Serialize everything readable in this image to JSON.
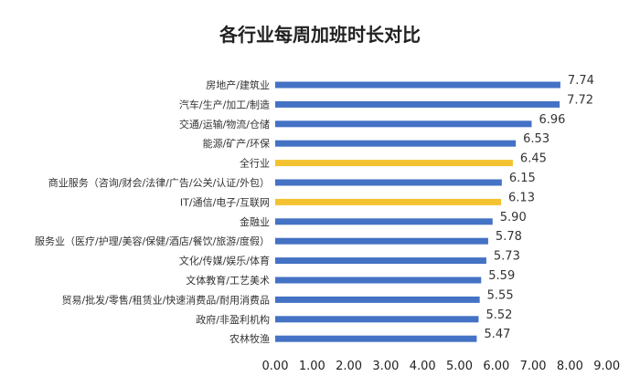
{
  "chart_data": {
    "type": "bar",
    "orientation": "horizontal",
    "title": "各行业每周加班时长对比",
    "categories": [
      "房地产/建筑业",
      "汽车/生产/加工/制造",
      "交通/运输/物流/仓储",
      "能源/矿产/环保",
      "全行业",
      "商业服务（咨询/财会/法律/广告/公关/认证/外包）",
      "IT/通信/电子/互联网",
      "金融业",
      "服务业（医疗/护理/美容/保健/酒店/餐饮/旅游/度假）",
      "文化/传媒/娱乐/体育",
      "文体教育/工艺美术",
      "贸易/批发/零售/租赁业/快速消费品/耐用消费品",
      "政府/非盈利机构",
      "农林牧渔"
    ],
    "values": [
      7.74,
      7.72,
      6.96,
      6.53,
      6.45,
      6.15,
      6.13,
      5.9,
      5.78,
      5.73,
      5.59,
      5.55,
      5.52,
      5.47
    ],
    "value_labels": [
      "7.74",
      "7.72",
      "6.96",
      "6.53",
      "6.45",
      "6.15",
      "6.13",
      "5.90",
      "5.78",
      "5.73",
      "5.59",
      "5.55",
      "5.52",
      "5.47"
    ],
    "highlighted": [
      "全行业",
      "IT/通信/电子/互联网"
    ],
    "xlim": [
      0,
      9
    ],
    "x_ticks": [
      "0.00",
      "1.00",
      "2.00",
      "3.00",
      "4.00",
      "5.00",
      "6.00",
      "7.00",
      "8.00",
      "9.00"
    ],
    "grid": false,
    "legend": "none",
    "colors": {
      "bar": "#4472C4",
      "highlight": "#F2C230"
    }
  }
}
